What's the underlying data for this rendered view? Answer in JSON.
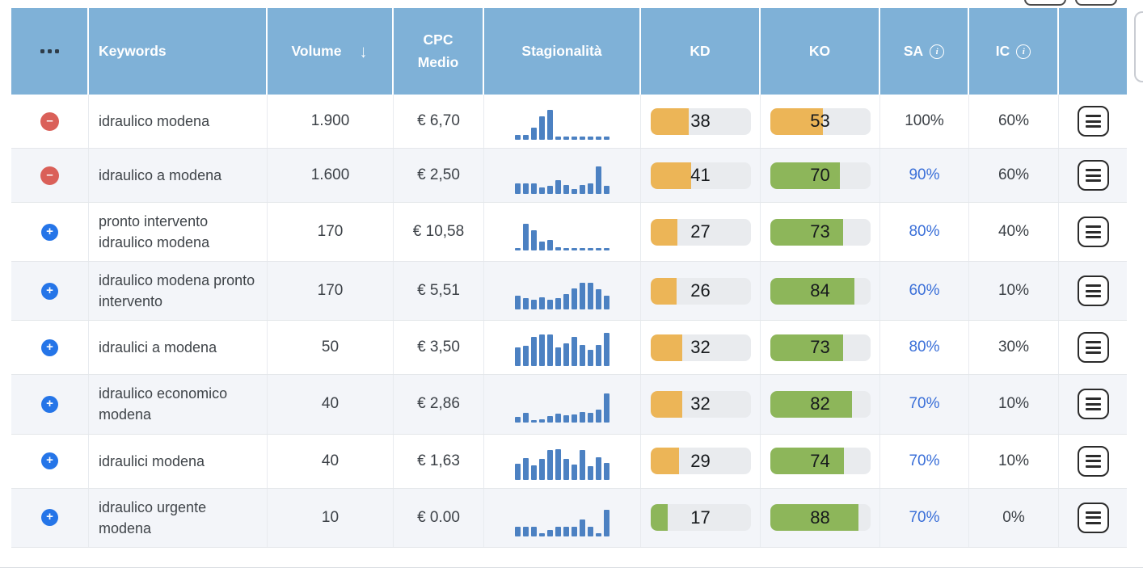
{
  "colors": {
    "header_bg": "#7fb1d7",
    "orange": "#ecb557",
    "green": "#8db65a",
    "pill_bg": "#e9ebee",
    "bar_blue": "#4c81c2",
    "link_blue": "#3a6fd8",
    "minus_red": "#da6059",
    "plus_blue": "#2575e8",
    "alt_row": "#f3f5f9"
  },
  "header": {
    "columns": {
      "keywords": "Keywords",
      "volume": "Volume",
      "volume_sort": "↓",
      "cpc": "CPC Medio",
      "seasonality": "Stagionalità",
      "kd": "KD",
      "ko": "KO",
      "sa": "SA",
      "ic": "IC",
      "info_glyph": "i"
    }
  },
  "table": {
    "rows": [
      {
        "action": "remove",
        "keyword": "idraulico modena",
        "volume": "1.900",
        "cpc": "€ 6,70",
        "seasonality": [
          14,
          14,
          32,
          62,
          80,
          9,
          9,
          9,
          9,
          9,
          9,
          9
        ],
        "kd": {
          "value": 38,
          "color": "orange"
        },
        "ko": {
          "value": 53,
          "color": "orange"
        },
        "sa": {
          "value": "100%",
          "link": false
        },
        "ic": "60%"
      },
      {
        "action": "remove",
        "keyword": "idraulico a modena",
        "volume": "1.600",
        "cpc": "€ 2,50",
        "seasonality": [
          28,
          28,
          28,
          18,
          22,
          38,
          25,
          14,
          25,
          28,
          75,
          22
        ],
        "kd": {
          "value": 41,
          "color": "orange"
        },
        "ko": {
          "value": 70,
          "color": "green"
        },
        "sa": {
          "value": "90%",
          "link": true
        },
        "ic": "60%"
      },
      {
        "action": "add",
        "keyword": "pronto intervento idraulico modena",
        "volume": "170",
        "cpc": "€ 10,58",
        "seasonality": [
          7,
          72,
          55,
          24,
          28,
          9,
          7,
          7,
          7,
          7,
          7,
          7
        ],
        "kd": {
          "value": 27,
          "color": "orange"
        },
        "ko": {
          "value": 73,
          "color": "green"
        },
        "sa": {
          "value": "80%",
          "link": true
        },
        "ic": "40%"
      },
      {
        "action": "add",
        "keyword": "idraulico modena pronto intervento",
        "volume": "170",
        "cpc": "€ 5,51",
        "seasonality": [
          38,
          30,
          26,
          33,
          26,
          32,
          42,
          58,
          72,
          72,
          55,
          38
        ],
        "kd": {
          "value": 26,
          "color": "orange"
        },
        "ko": {
          "value": 84,
          "color": "green"
        },
        "sa": {
          "value": "60%",
          "link": true
        },
        "ic": "10%"
      },
      {
        "action": "add",
        "keyword": "idraulici a modena",
        "volume": "50",
        "cpc": "€ 3,50",
        "seasonality": [
          50,
          55,
          80,
          85,
          85,
          50,
          62,
          80,
          58,
          45,
          58,
          90
        ],
        "kd": {
          "value": 32,
          "color": "orange"
        },
        "ko": {
          "value": 73,
          "color": "green"
        },
        "sa": {
          "value": "80%",
          "link": true
        },
        "ic": "30%"
      },
      {
        "action": "add",
        "keyword": "idraulico economico modena",
        "volume": "40",
        "cpc": "€ 2,86",
        "seasonality": [
          16,
          28,
          8,
          10,
          18,
          25,
          20,
          22,
          30,
          28,
          35,
          80
        ],
        "kd": {
          "value": 32,
          "color": "orange"
        },
        "ko": {
          "value": 82,
          "color": "green"
        },
        "sa": {
          "value": "70%",
          "link": true
        },
        "ic": "10%"
      },
      {
        "action": "add",
        "keyword": "idraulici modena",
        "volume": "40",
        "cpc": "€ 1,63",
        "seasonality": [
          42,
          58,
          38,
          55,
          80,
          82,
          55,
          40,
          80,
          35,
          60,
          45
        ],
        "kd": {
          "value": 29,
          "color": "orange"
        },
        "ko": {
          "value": 74,
          "color": "green"
        },
        "sa": {
          "value": "70%",
          "link": true
        },
        "ic": "10%"
      },
      {
        "action": "add",
        "keyword": "idraulico urgente modena",
        "volume": "10",
        "cpc": "€ 0.00",
        "seasonality": [
          25,
          25,
          25,
          7,
          16,
          25,
          25,
          25,
          45,
          25,
          7,
          70
        ],
        "kd": {
          "value": 17,
          "color": "green"
        },
        "ko": {
          "value": 88,
          "color": "green"
        },
        "sa": {
          "value": "70%",
          "link": true
        },
        "ic": "0%"
      }
    ]
  }
}
